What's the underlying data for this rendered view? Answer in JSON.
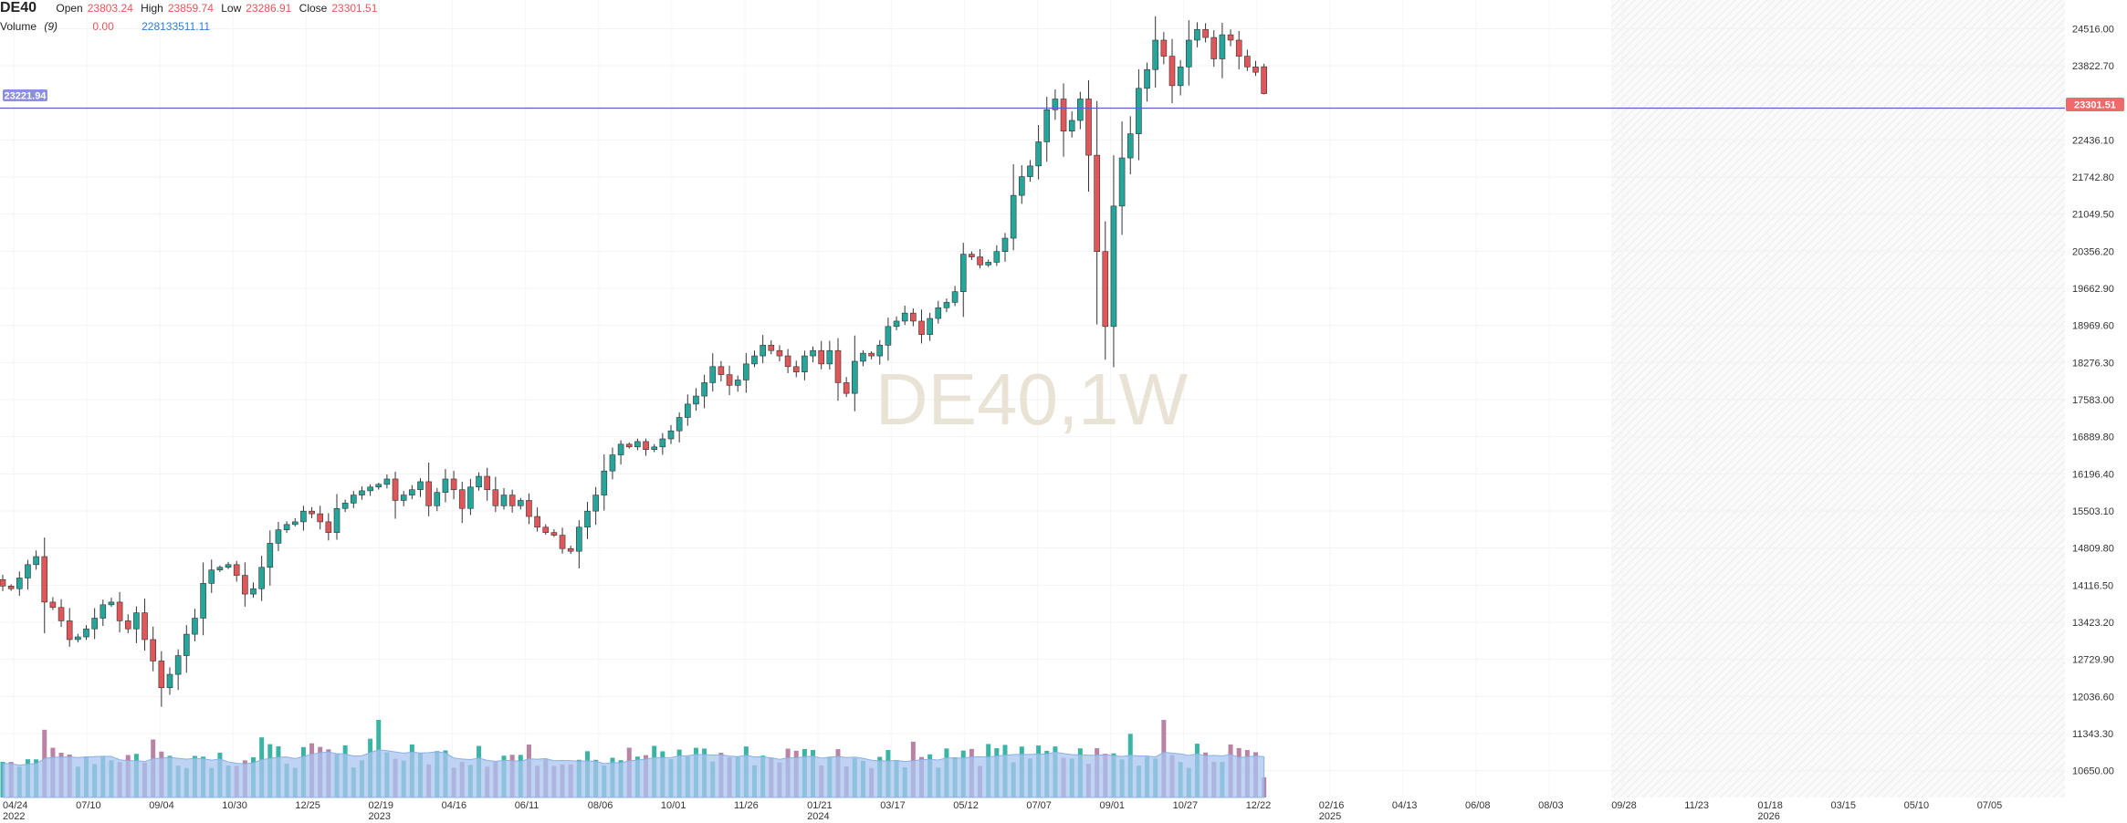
{
  "header": {
    "symbol": "DE40",
    "open_label": "Open",
    "open_value": "23803.24",
    "high_label": "High",
    "high_value": "23859.74",
    "low_label": "Low",
    "low_value": "23286.91",
    "close_label": "Close",
    "close_value": "23301.51",
    "volume_label": "Volume",
    "volume_period": "(9)",
    "volume_value": "0.00",
    "volume_ma_value": "228133511.11"
  },
  "watermark": "DE40,1W",
  "crosshair_label": "23221.94",
  "last_price_label": "23301.51",
  "colors": {
    "up": "#26a69a",
    "down": "#e15759",
    "volume_up": "#3cb4a5",
    "volume_down": "#b983a6",
    "volume_ma_fill": "#a9c6f0",
    "price_line": "#5b5fc7",
    "future_pattern": "#f2f2f2"
  },
  "chart_data": {
    "type": "candlestick",
    "timeframe": "1W",
    "y_ticks": [
      "24516.00",
      "23822.70",
      "22436.10",
      "21742.80",
      "21049.50",
      "20356.20",
      "19662.90",
      "18969.60",
      "18276.30",
      "17583.00",
      "16889.80",
      "16196.40",
      "15503.10",
      "14809.80",
      "14116.50",
      "13423.20",
      "12729.90",
      "12036.60",
      "11343.30",
      "10650.00"
    ],
    "x_ticks": [
      {
        "label": "04/24",
        "sub": "2022"
      },
      {
        "label": "07/10",
        "sub": ""
      },
      {
        "label": "09/04",
        "sub": ""
      },
      {
        "label": "10/30",
        "sub": ""
      },
      {
        "label": "12/25",
        "sub": ""
      },
      {
        "label": "02/19",
        "sub": "2023"
      },
      {
        "label": "04/16",
        "sub": ""
      },
      {
        "label": "06/11",
        "sub": ""
      },
      {
        "label": "08/06",
        "sub": ""
      },
      {
        "label": "10/01",
        "sub": ""
      },
      {
        "label": "11/26",
        "sub": ""
      },
      {
        "label": "01/21",
        "sub": "2024"
      },
      {
        "label": "03/17",
        "sub": ""
      },
      {
        "label": "05/12",
        "sub": ""
      },
      {
        "label": "07/07",
        "sub": ""
      },
      {
        "label": "09/01",
        "sub": ""
      },
      {
        "label": "10/27",
        "sub": ""
      },
      {
        "label": "12/22",
        "sub": ""
      },
      {
        "label": "02/16",
        "sub": "2025"
      },
      {
        "label": "04/13",
        "sub": ""
      },
      {
        "label": "06/08",
        "sub": ""
      },
      {
        "label": "08/03",
        "sub": ""
      },
      {
        "label": "09/28",
        "sub": ""
      },
      {
        "label": "11/23",
        "sub": ""
      },
      {
        "label": "01/18",
        "sub": "2026"
      },
      {
        "label": "03/15",
        "sub": ""
      },
      {
        "label": "05/10",
        "sub": ""
      },
      {
        "label": "07/05",
        "sub": ""
      }
    ],
    "weekly_close": [
      14100,
      14050,
      14250,
      14500,
      14650,
      13800,
      13700,
      13450,
      13100,
      13150,
      13300,
      13500,
      13750,
      13800,
      13450,
      13300,
      13600,
      13100,
      12700,
      12200,
      12450,
      12800,
      13200,
      13500,
      14150,
      14400,
      14450,
      14500,
      14300,
      13950,
      14050,
      14450,
      14900,
      15150,
      15250,
      15300,
      15500,
      15450,
      15300,
      15100,
      15550,
      15650,
      15800,
      15880,
      15950,
      16000,
      16100,
      15700,
      15800,
      15900,
      16050,
      15600,
      15850,
      16100,
      15900,
      15550,
      15950,
      16150,
      15900,
      15600,
      15800,
      15600,
      15700,
      15400,
      15200,
      15100,
      15050,
      14800,
      14750,
      15200,
      15500,
      15800,
      16250,
      16550,
      16750,
      16700,
      16800,
      16650,
      16700,
      16850,
      17000,
      17250,
      17500,
      17650,
      17900,
      18200,
      18050,
      17850,
      17950,
      18250,
      18400,
      18600,
      18500,
      18400,
      18200,
      18100,
      18400,
      18500,
      18250,
      18500,
      17900,
      17700,
      18300,
      18450,
      18400,
      18600,
      18950,
      19050,
      19200,
      19050,
      18800,
      19100,
      19300,
      19400,
      19600,
      20300,
      20250,
      20100,
      20150,
      20350,
      20600,
      21400,
      21750,
      21950,
      22400,
      23000,
      23200,
      22600,
      22800,
      23200,
      22150,
      20350,
      18950,
      21200,
      22100,
      22550,
      23400,
      23750,
      24300,
      24000,
      23450,
      23800,
      24300,
      24500,
      24350,
      23950,
      24400,
      24300,
      24000,
      23800,
      23700,
      23301.51
    ],
    "last_candle": {
      "open": 23803.24,
      "high": 23859.74,
      "low": 23286.91,
      "close": 23301.51
    },
    "volume_ylim": [
      0,
      3000000000
    ],
    "volume_ma_period": 9,
    "ylim": [
      10150,
      25050
    ]
  }
}
